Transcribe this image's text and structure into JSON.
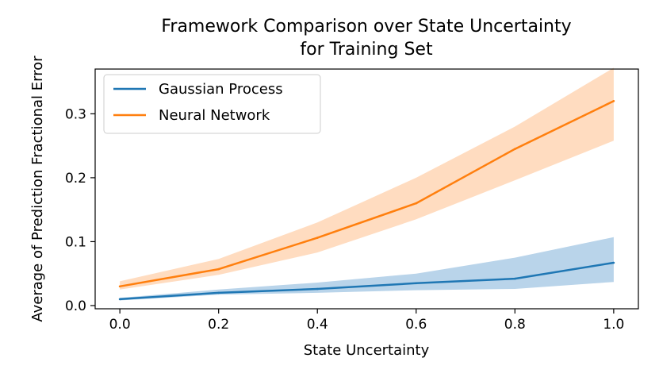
{
  "chart_data": {
    "type": "line",
    "title_lines": [
      "Framework Comparison over State Uncertainty",
      "for Training Set"
    ],
    "xlabel": "State Uncertainty",
    "ylabel": "Average of Prediction Fractional Error",
    "x": [
      0.0,
      0.2,
      0.4,
      0.6,
      0.8,
      1.0
    ],
    "xlim": [
      -0.05,
      1.05
    ],
    "ylim": [
      -0.005,
      0.37
    ],
    "xticks": [
      0.0,
      0.2,
      0.4,
      0.6,
      0.8,
      1.0
    ],
    "xtick_labels": [
      "0.0",
      "0.2",
      "0.4",
      "0.6",
      "0.8",
      "1.0"
    ],
    "yticks": [
      0.0,
      0.1,
      0.2,
      0.3
    ],
    "ytick_labels": [
      "0.0",
      "0.1",
      "0.2",
      "0.3"
    ],
    "grid": false,
    "legend_position": "top-left",
    "series": [
      {
        "name": "Gaussian Process",
        "color": "#1f77b4",
        "band_color": "#b9d4ea",
        "values": [
          0.01,
          0.02,
          0.026,
          0.035,
          0.042,
          0.067
        ],
        "lower": [
          0.008,
          0.017,
          0.02,
          0.024,
          0.026,
          0.037
        ],
        "upper": [
          0.012,
          0.025,
          0.036,
          0.05,
          0.075,
          0.107
        ]
      },
      {
        "name": "Neural Network",
        "color": "#ff7f0e",
        "band_color": "#ffdcc0",
        "values": [
          0.03,
          0.057,
          0.106,
          0.16,
          0.245,
          0.32
        ],
        "lower": [
          0.025,
          0.048,
          0.083,
          0.135,
          0.196,
          0.258
        ],
        "upper": [
          0.038,
          0.073,
          0.13,
          0.2,
          0.28,
          0.372
        ]
      }
    ]
  }
}
